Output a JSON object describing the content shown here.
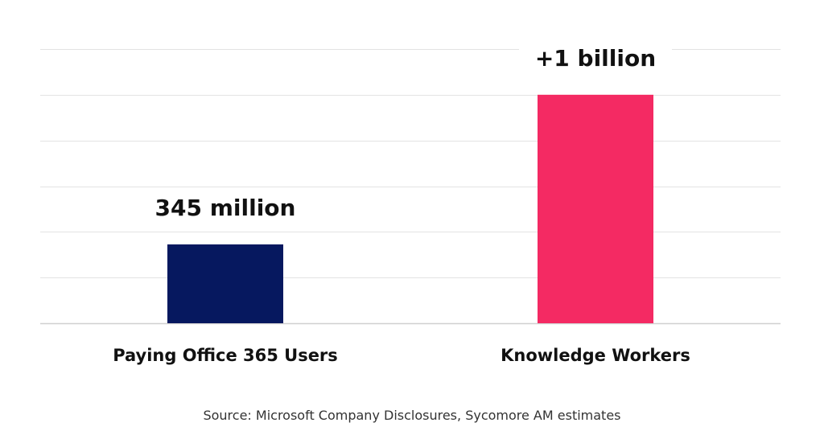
{
  "chart_data": {
    "type": "bar",
    "categories": [
      "Paying Office 365 Users",
      "Knowledge Workers"
    ],
    "values": [
      345,
      1000
    ],
    "value_labels": [
      "345 million",
      "+1 billion"
    ],
    "colors": [
      "#06185F",
      "#F42A63"
    ],
    "ylim": [
      0,
      1200
    ],
    "grid": true,
    "grid_step": 200,
    "title": "",
    "xlabel": "",
    "ylabel": ""
  },
  "source_text": "Source: Microsoft Company Disclosures, Sycomore AM estimates"
}
